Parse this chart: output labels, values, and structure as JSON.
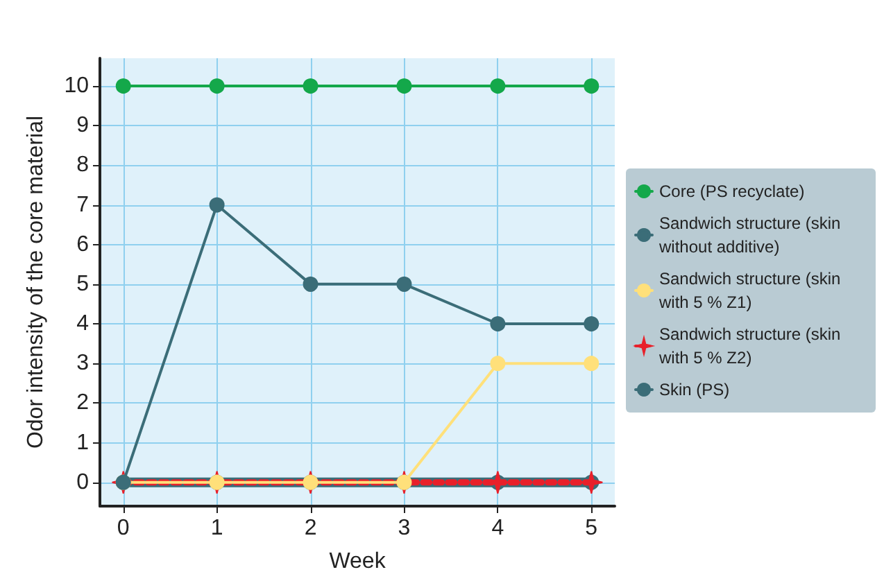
{
  "chart_data": {
    "type": "line",
    "xlabel": "Week",
    "ylabel": "Odor intensity of the core material",
    "x": [
      0,
      1,
      2,
      3,
      4,
      5
    ],
    "series": [
      {
        "name": "Core (PS recyclate)",
        "color": "#14a84a",
        "values": [
          10,
          10,
          10,
          10,
          10,
          10
        ]
      },
      {
        "name": "Sandwich structure (skin without additive)",
        "color": "#3b6d78",
        "values": [
          0,
          7,
          5,
          5,
          4,
          4
        ]
      },
      {
        "name": "Sandwich structure (skin with 5 % Z1)",
        "color": "#ffe07a",
        "values": [
          0,
          0,
          0,
          0,
          3,
          3
        ]
      },
      {
        "name": "Sandwich structure (skin with 5 % Z2)",
        "color": "#e8202a",
        "values": [
          0,
          0,
          0,
          0,
          0,
          0
        ],
        "marker": "star",
        "line_style": "dotted"
      },
      {
        "name": "Skin (PS)",
        "color": "#3b6d78",
        "values": [
          0,
          0,
          0,
          0,
          0,
          0
        ]
      }
    ],
    "xlim": [
      -0.25,
      5.25
    ],
    "xticks": [
      0,
      1,
      2,
      3,
      4,
      5
    ],
    "ylim": [
      -0.6,
      10.7
    ],
    "yticks": [
      0,
      1,
      2,
      3,
      4,
      5,
      6,
      7,
      8,
      9,
      10
    ],
    "grid": true,
    "legend": "right",
    "marker": "circle",
    "line_style": "solid"
  }
}
